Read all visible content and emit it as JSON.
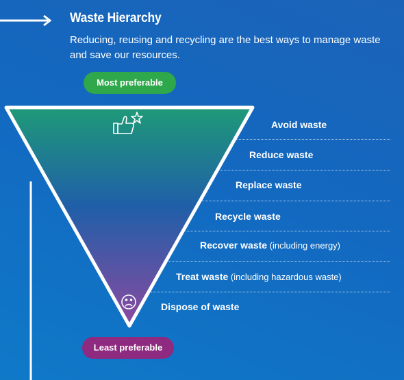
{
  "header": {
    "title": "Waste Hierarchy",
    "subtitle": "Reducing, reusing and recycling are the best ways to manage waste and save our resources."
  },
  "badges": {
    "top": "Most preferable",
    "bottom": "Least preferable"
  },
  "levels": [
    {
      "label": "Avoid waste",
      "note": ""
    },
    {
      "label": "Reduce waste",
      "note": ""
    },
    {
      "label": "Replace waste",
      "note": ""
    },
    {
      "label": "Recycle waste",
      "note": ""
    },
    {
      "label": "Recover waste",
      "note": " (including energy)"
    },
    {
      "label": "Treat waste",
      "note": " (including hazardous waste)"
    },
    {
      "label": "Dispose of waste",
      "note": ""
    }
  ],
  "icons": {
    "top": "thumbs-up-star-icon",
    "bottom": "sad-face-icon"
  },
  "colors": {
    "funnel_top": "#1f9a78",
    "funnel_mid": "#1f5fa8",
    "funnel_bottom": "#8a4aa0",
    "most_badge": "#2ea84a",
    "least_badge": "#8e2a7f"
  }
}
